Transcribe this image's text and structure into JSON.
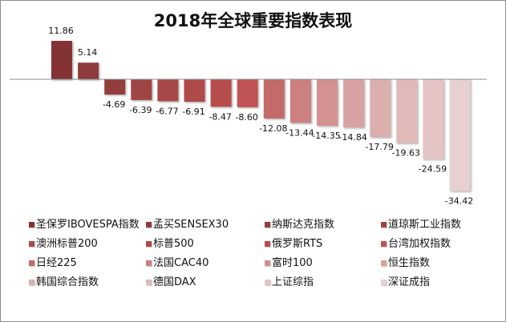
{
  "chart_data": {
    "type": "bar",
    "title": "2018年全球重要指数表现",
    "xlabel": "",
    "ylabel": "",
    "ylim": [
      -36,
      13
    ],
    "grid": false,
    "legend_position": "bottom",
    "categories": [
      "圣保罗IBOVESPA指数",
      "孟买SENSEX30",
      "纳斯达克指数",
      "道琼斯工业指数",
      "澳洲标普200",
      "标普500",
      "俄罗斯RTS",
      "台湾加权指数",
      "日经225",
      "法国CAC40",
      "富时100",
      "恒生指数",
      "韩国综合指数",
      "德国DAX",
      "上证综指",
      "深证成指"
    ],
    "values": [
      11.86,
      5.14,
      -4.69,
      -6.39,
      -6.77,
      -6.91,
      -8.47,
      -8.6,
      -12.08,
      -13.44,
      -14.35,
      -14.84,
      -17.79,
      -19.63,
      -24.59,
      -34.42
    ],
    "labels": [
      "11.86",
      "5.14",
      "-4.69",
      "-6.39",
      "-6.77",
      "-6.91",
      "-8.47",
      "-8.60",
      "-12.08",
      "-13.44",
      "-14.35",
      "-14.84",
      "-17.79",
      "-19.63",
      "-24.59",
      "-34.42"
    ],
    "colors": [
      "#853334",
      "#8e3a3a",
      "#943d3d",
      "#a04444",
      "#a84848",
      "#b04a4a",
      "#b84d4d",
      "#c05252",
      "#c46a6a",
      "#cc8080",
      "#d39191",
      "#d9a2a2",
      "#dcafaf",
      "#e0b9b9",
      "#e4c4c4",
      "#e8d0d0"
    ]
  }
}
